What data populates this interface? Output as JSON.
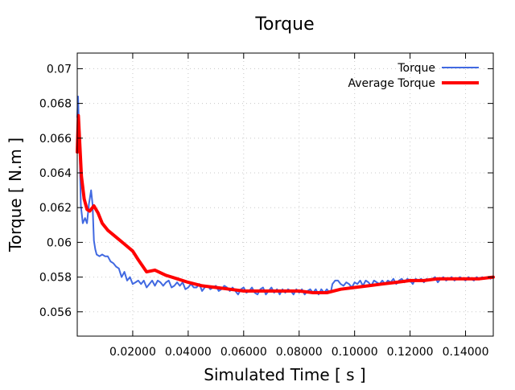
{
  "chart_data": {
    "type": "line",
    "title": "Torque",
    "xlabel": "Simulated Time [ s ]",
    "ylabel": "Torque [ N.m ]",
    "xlim": [
      0,
      0.15
    ],
    "ylim": [
      0.0546,
      0.0709
    ],
    "xticks": [
      0.02,
      0.04,
      0.06,
      0.08,
      0.1,
      0.12,
      0.14
    ],
    "xtick_labels": [
      "0.02000",
      "0.04000",
      "0.06000",
      "0.08000",
      "0.10000",
      "0.12000",
      "0.14000"
    ],
    "yticks": [
      0.056,
      0.058,
      0.06,
      0.062,
      0.064,
      0.066,
      0.068,
      0.07
    ],
    "ytick_labels": [
      "0.056",
      "0.058",
      "0.06",
      "0.062",
      "0.064",
      "0.066",
      "0.068",
      "0.07"
    ],
    "grid": true,
    "legend_position": "top-right",
    "series": [
      {
        "name": "Torque",
        "color": "#4169E1",
        "width": 2,
        "x": [
          0,
          0.0003,
          0.0008,
          0.0013,
          0.002,
          0.0028,
          0.0035,
          0.0042,
          0.005,
          0.0055,
          0.006,
          0.0065,
          0.007,
          0.008,
          0.009,
          0.01,
          0.011,
          0.012,
          0.013,
          0.014,
          0.015,
          0.016,
          0.017,
          0.018,
          0.019,
          0.02,
          0.021,
          0.022,
          0.023,
          0.024,
          0.025,
          0.026,
          0.027,
          0.028,
          0.029,
          0.03,
          0.031,
          0.032,
          0.033,
          0.034,
          0.035,
          0.036,
          0.037,
          0.038,
          0.039,
          0.04,
          0.041,
          0.042,
          0.043,
          0.044,
          0.045,
          0.046,
          0.047,
          0.048,
          0.049,
          0.05,
          0.051,
          0.052,
          0.053,
          0.054,
          0.055,
          0.056,
          0.057,
          0.058,
          0.059,
          0.06,
          0.061,
          0.062,
          0.063,
          0.064,
          0.065,
          0.066,
          0.067,
          0.068,
          0.069,
          0.07,
          0.071,
          0.072,
          0.073,
          0.074,
          0.075,
          0.076,
          0.077,
          0.078,
          0.079,
          0.08,
          0.081,
          0.082,
          0.083,
          0.084,
          0.085,
          0.086,
          0.087,
          0.088,
          0.089,
          0.09,
          0.091,
          0.0915,
          0.092,
          0.093,
          0.094,
          0.095,
          0.096,
          0.097,
          0.098,
          0.099,
          0.1,
          0.101,
          0.102,
          0.103,
          0.104,
          0.105,
          0.106,
          0.107,
          0.108,
          0.109,
          0.11,
          0.111,
          0.112,
          0.113,
          0.114,
          0.115,
          0.116,
          0.117,
          0.118,
          0.119,
          0.12,
          0.121,
          0.122,
          0.123,
          0.124,
          0.125,
          0.126,
          0.127,
          0.128,
          0.129,
          0.13,
          0.131,
          0.132,
          0.133,
          0.134,
          0.135,
          0.136,
          0.137,
          0.138,
          0.139,
          0.14,
          0.141,
          0.142,
          0.143,
          0.144,
          0.145,
          0.146,
          0.147,
          0.148,
          0.149,
          0.15
        ],
        "y": [
          0.0672,
          0.0684,
          0.0655,
          0.0621,
          0.0611,
          0.0614,
          0.0611,
          0.0622,
          0.063,
          0.0622,
          0.0601,
          0.0596,
          0.0593,
          0.0592,
          0.0593,
          0.0592,
          0.0592,
          0.0589,
          0.0588,
          0.0586,
          0.0585,
          0.058,
          0.0583,
          0.0578,
          0.058,
          0.0576,
          0.0577,
          0.0578,
          0.0576,
          0.0578,
          0.0574,
          0.0576,
          0.0578,
          0.0575,
          0.0578,
          0.0577,
          0.0575,
          0.0577,
          0.0578,
          0.0574,
          0.0575,
          0.0577,
          0.0575,
          0.0577,
          0.0573,
          0.0574,
          0.0576,
          0.0574,
          0.0574,
          0.0576,
          0.0572,
          0.0574,
          0.0575,
          0.0573,
          0.0574,
          0.0575,
          0.0572,
          0.0573,
          0.0575,
          0.0574,
          0.0572,
          0.0574,
          0.0572,
          0.057,
          0.0573,
          0.0574,
          0.0571,
          0.0572,
          0.0574,
          0.0571,
          0.057,
          0.0573,
          0.0574,
          0.057,
          0.0572,
          0.0574,
          0.0571,
          0.0573,
          0.057,
          0.0573,
          0.0571,
          0.0573,
          0.0572,
          0.057,
          0.0573,
          0.0571,
          0.0573,
          0.057,
          0.0572,
          0.0573,
          0.0571,
          0.0573,
          0.057,
          0.0573,
          0.0571,
          0.0573,
          0.0571,
          0.0572,
          0.0576,
          0.0578,
          0.0578,
          0.0576,
          0.0575,
          0.0577,
          0.0576,
          0.0574,
          0.0577,
          0.0576,
          0.0578,
          0.0575,
          0.0578,
          0.0577,
          0.0575,
          0.0578,
          0.0577,
          0.0576,
          0.0578,
          0.0576,
          0.0578,
          0.0577,
          0.0579,
          0.0576,
          0.0578,
          0.0579,
          0.0577,
          0.0579,
          0.0578,
          0.0576,
          0.0579,
          0.0578,
          0.0579,
          0.0577,
          0.0579,
          0.0578,
          0.0579,
          0.058,
          0.0577,
          0.0579,
          0.058,
          0.0578,
          0.0579,
          0.058,
          0.0578,
          0.0579,
          0.058,
          0.0579,
          0.0578,
          0.058,
          0.0579,
          0.0578,
          0.058,
          0.0579,
          0.058,
          0.0579,
          0.058,
          0.0579,
          0.058
        ]
      },
      {
        "name": "Average Torque",
        "color": "#FF0000",
        "width": 4,
        "x": [
          0,
          0.0004,
          0.0008,
          0.0015,
          0.0025,
          0.0035,
          0.0045,
          0.006,
          0.0075,
          0.009,
          0.011,
          0.014,
          0.017,
          0.02,
          0.022,
          0.025,
          0.028,
          0.032,
          0.036,
          0.04,
          0.045,
          0.05,
          0.055,
          0.06,
          0.065,
          0.07,
          0.075,
          0.08,
          0.085,
          0.09,
          0.095,
          0.1,
          0.105,
          0.11,
          0.115,
          0.12,
          0.125,
          0.13,
          0.135,
          0.14,
          0.145,
          0.15
        ],
        "y": [
          0.0652,
          0.0673,
          0.066,
          0.0638,
          0.0625,
          0.0619,
          0.0618,
          0.0621,
          0.0617,
          0.0611,
          0.0607,
          0.0603,
          0.0599,
          0.0595,
          0.059,
          0.0583,
          0.0584,
          0.0581,
          0.0579,
          0.0577,
          0.0575,
          0.0574,
          0.0573,
          0.0572,
          0.0572,
          0.0572,
          0.0572,
          0.0572,
          0.0571,
          0.0571,
          0.0573,
          0.0574,
          0.0575,
          0.0576,
          0.0577,
          0.0578,
          0.0578,
          0.0579,
          0.0579,
          0.0579,
          0.0579,
          0.058
        ]
      }
    ]
  }
}
